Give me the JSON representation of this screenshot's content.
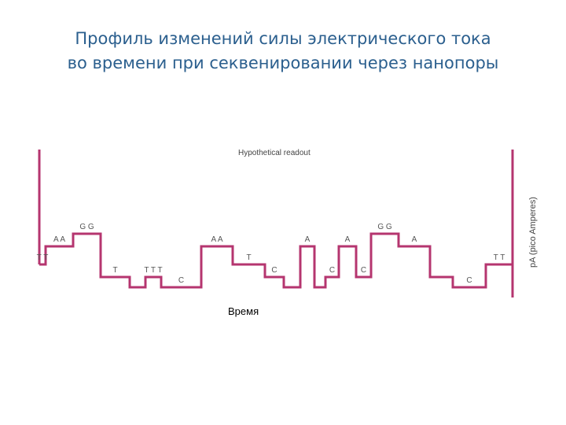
{
  "title": {
    "line1": "Профиль изменений силы электрического тока",
    "line2": "во времени при секвенировании через нанопоры"
  },
  "diagram": {
    "heading": "Hypothetical readout",
    "y_axis_label": "pA (pico Amperes)",
    "x_axis_label": "Время",
    "trace_color": "#b5356f",
    "label_color": "#555555",
    "levels": {
      "high": 4,
      "mid_high": 3,
      "baseline": 2,
      "mid_low": 1,
      "low": 0
    },
    "trace": [
      {
        "base": "T T",
        "level": 2
      },
      {
        "base": "A A",
        "level": 3
      },
      {
        "base": "G G",
        "level": 4
      },
      {
        "base": "T",
        "level": 1
      },
      {
        "base": "",
        "level": 0
      },
      {
        "base": "T T T",
        "level": 1
      },
      {
        "base": "C",
        "level": 0
      },
      {
        "base": "A A",
        "level": 3
      },
      {
        "base": "T",
        "level": 2
      },
      {
        "base": "C",
        "level": 1
      },
      {
        "base": "",
        "level": 0
      },
      {
        "base": "A",
        "level": 3
      },
      {
        "base": "",
        "level": 0
      },
      {
        "base": "C",
        "level": 1
      },
      {
        "base": "A",
        "level": 3
      },
      {
        "base": "C",
        "level": 1
      },
      {
        "base": "G G",
        "level": 4
      },
      {
        "base": "A",
        "level": 3
      },
      {
        "base": "",
        "level": 1
      },
      {
        "base": "C",
        "level": 0
      },
      {
        "base": "T T",
        "level": 2
      }
    ]
  }
}
